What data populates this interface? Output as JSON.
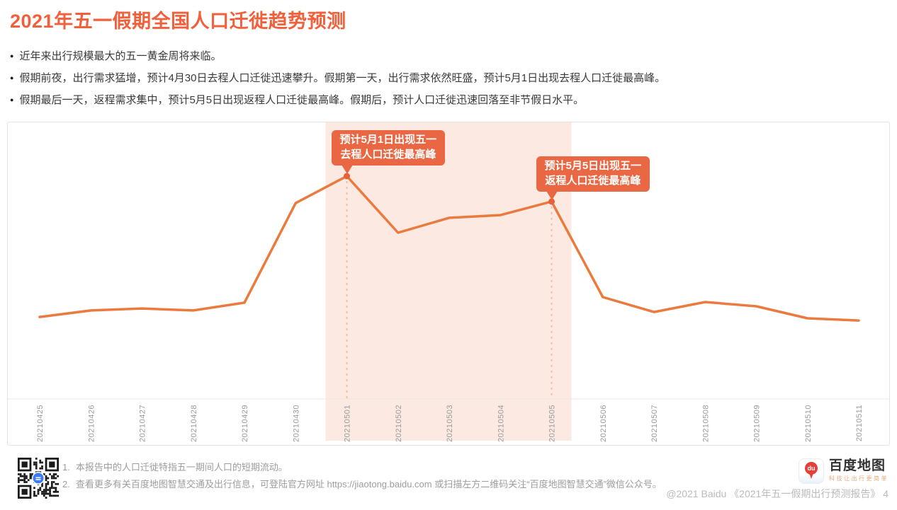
{
  "page": {
    "title": "2021年五一假期全国人口迁徙趋势预测",
    "bullets": [
      "近年来出行规模最大的五一黄金周将来临。",
      "假期前夜，出行需求猛增，预计4月30日去程人口迁徙迅速攀升。假期第一天，出行需求依然旺盛，预计5月1日出现去程人口迁徙最高峰。",
      "假期最后一天，返程需求集中，预计5月5日出现返程人口迁徙最高峰。假期后，预计人口迁徙迅速回落至非节假日水平。"
    ],
    "bullet_glyph": "●"
  },
  "chart_data": {
    "type": "line",
    "x": [
      "20210425",
      "20210426",
      "20210427",
      "20210428",
      "20210429",
      "20210430",
      "20210501",
      "20210502",
      "20210503",
      "20210504",
      "20210505",
      "20210506",
      "20210507",
      "20210508",
      "20210509",
      "20210510",
      "20210511"
    ],
    "values": [
      36.8,
      39.7,
      40.6,
      39.7,
      43.2,
      87.9,
      100,
      74.6,
      81.3,
      82.5,
      88.6,
      45.7,
      39.0,
      43.5,
      41.6,
      36.2,
      35.2
    ],
    "ylim": [
      0,
      115
    ],
    "grid": false,
    "legend": false,
    "highlight_band": {
      "start": "20210501",
      "end": "20210505",
      "color": "#FBE9E2"
    },
    "annotations": [
      {
        "date": "20210501",
        "line1": "预计5月1日出现五一",
        "line2": "去程人口迁徙最高峰"
      },
      {
        "date": "20210505",
        "line1": "预计5月5日出现五一",
        "line2": "返程人口迁徙最高峰"
      }
    ],
    "line_color": "#EB7A3E",
    "dot_color": "#E8603A",
    "dashed_color": "#F3B593",
    "axis_color": "#E8E8E8",
    "tick_color": "#9A9A9A",
    "callout_bg": "#E96843"
  },
  "footer": {
    "notes": [
      {
        "num": "1.",
        "text": "本报告中的人口迁徙特指五一期间人口的短期流动。"
      },
      {
        "num": "2.",
        "prefix": "查看更多有关百度地图智慧交通及出行信息，可登陆官方网址 ",
        "url": "https://jiaotong.baidu.com",
        "suffix": " 或扫描左方二维码关注“百度地图智慧交通”微信公众号。"
      }
    ],
    "brand": {
      "name": "百度地图",
      "tagline": "科技让出行更简单",
      "pin_label": "du"
    },
    "copyright": "@2021 Baidu 《2021年五一假期出行预测报告》 4"
  }
}
